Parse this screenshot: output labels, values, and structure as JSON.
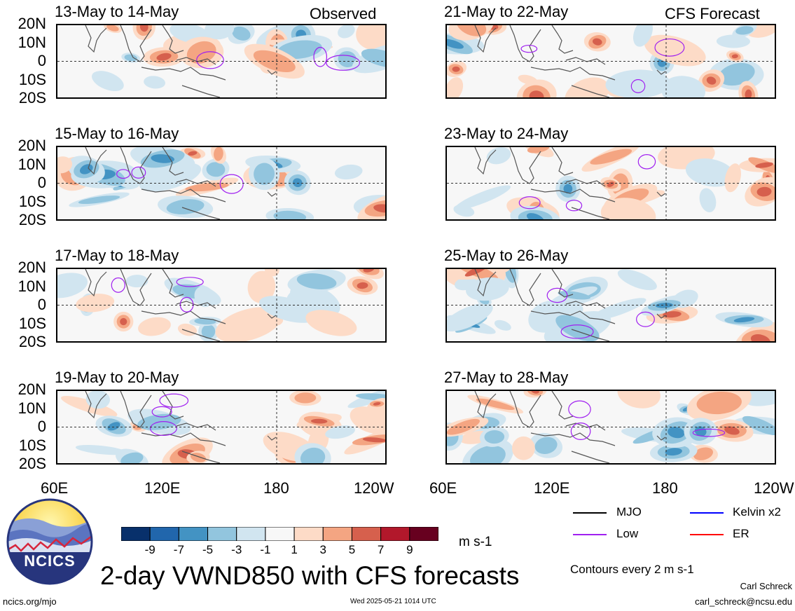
{
  "left_tag": "Observed",
  "right_tag": "CFS Forecast",
  "panels": [
    {
      "title": "13-May to 14-May"
    },
    {
      "title": "15-May to 16-May"
    },
    {
      "title": "17-May to 18-May"
    },
    {
      "title": "19-May to 20-May"
    },
    {
      "title": "21-May to 22-May"
    },
    {
      "title": "23-May to 24-May"
    },
    {
      "title": "25-May to 26-May"
    },
    {
      "title": "27-May to 28-May"
    }
  ],
  "lat_labels": [
    "20N",
    "10N",
    "0",
    "10S",
    "20S"
  ],
  "lon_labels": [
    "60E",
    "120E",
    "180",
    "120W"
  ],
  "colorbar": {
    "labels": [
      "-9",
      "-7",
      "-5",
      "-3",
      "-1",
      "1",
      "3",
      "5",
      "7",
      "9"
    ],
    "units": "m s-1",
    "colors": [
      "#08306b",
      "#2166ac",
      "#4393c3",
      "#92c5de",
      "#d1e5f0",
      "#f7f7f7",
      "#fddbc7",
      "#f4a582",
      "#d6604d",
      "#b2182b",
      "#67001f"
    ]
  },
  "legend": {
    "items": [
      {
        "label": "MJO",
        "color": "#000000"
      },
      {
        "label": "Kelvin x2",
        "color": "#0000ff"
      },
      {
        "label": "Low",
        "color": "#a020f0"
      },
      {
        "label": "ER",
        "color": "#ff0000"
      }
    ],
    "note": "Contours every 2 m s-1"
  },
  "main_title": "2-day VWND850 with CFS forecasts",
  "logo_text": "NCICS",
  "footer": {
    "url": "ncics.org/mjo",
    "timestamp": "Wed 2025-05-21 1014 UTC",
    "author": "Carl Schreck",
    "email": "carl_schreck@ncsu.edu"
  }
}
